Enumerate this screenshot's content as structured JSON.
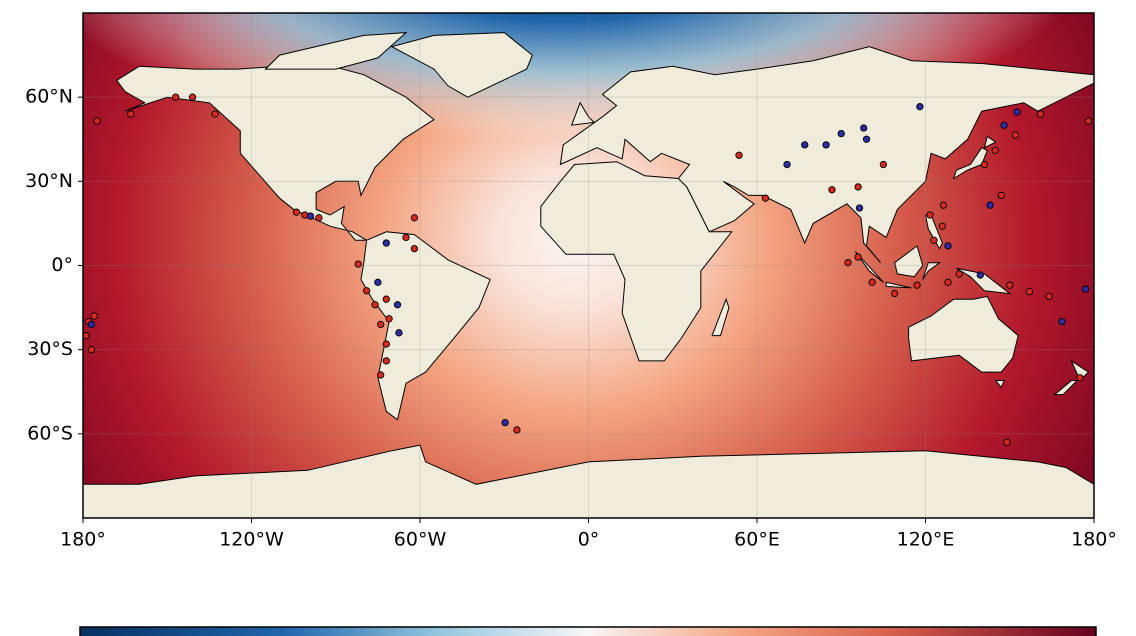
{
  "chart_data": {
    "type": "map",
    "xlim": [
      -180,
      180
    ],
    "ylim": [
      -90,
      90
    ],
    "xticks": [
      {
        "value": -180,
        "label": "180°"
      },
      {
        "value": -120,
        "label": "120°W"
      },
      {
        "value": -60,
        "label": "60°W"
      },
      {
        "value": 0,
        "label": "0°"
      },
      {
        "value": 60,
        "label": "60°E"
      },
      {
        "value": 120,
        "label": "120°E"
      },
      {
        "value": 180,
        "label": "180°"
      }
    ],
    "yticks": [
      {
        "value": 60,
        "label": "60°N"
      },
      {
        "value": 30,
        "label": "30°N"
      },
      {
        "value": 0,
        "label": "0°"
      },
      {
        "value": -30,
        "label": "30°S"
      },
      {
        "value": -60,
        "label": "60°S"
      }
    ],
    "grid": true,
    "series": [
      {
        "color": "#d62a1e",
        "x": [
          -178,
          -176,
          -179,
          -177,
          -175,
          -163,
          -147,
          -141,
          -133,
          -104,
          -101,
          -96,
          -62,
          -65,
          -62,
          -82,
          -79,
          -76,
          -74,
          -72,
          -72,
          -74,
          -72,
          -71,
          -25.5,
          53.6,
          63,
          86.7,
          96,
          105,
          92.4,
          96,
          101,
          109,
          117,
          128,
          132,
          123,
          126,
          126.4,
          141,
          144.8,
          152,
          161,
          178,
          121.6,
          147,
          150,
          157,
          164,
          175,
          149
        ],
        "y": [
          -20,
          -18,
          -25,
          -30,
          51.5,
          54,
          60,
          60,
          54,
          19,
          18,
          17,
          17,
          10,
          6,
          0.5,
          -9,
          -14,
          -21,
          -28,
          -34,
          -39,
          -12,
          -19,
          -58.6,
          39.3,
          24,
          27,
          28,
          36,
          1,
          3,
          -6,
          -10,
          -7,
          -6,
          -3,
          9,
          14,
          21.5,
          36,
          41,
          46.5,
          54,
          51.5,
          18,
          25,
          -7,
          -9.3,
          -11,
          -40,
          -63
        ]
      },
      {
        "color": "#2c2ca8",
        "x": [
          -177,
          -99,
          -72,
          -75,
          -68,
          -67.5,
          -29.7,
          70.7,
          77,
          84.6,
          90,
          98,
          99,
          118,
          96.5,
          128,
          139.5,
          143,
          148,
          152.6,
          177,
          168.6
        ],
        "y": [
          -21,
          17.6,
          8,
          -6,
          -14,
          -24,
          -56,
          36,
          43,
          43,
          47,
          49,
          45,
          56.6,
          20.5,
          7,
          -3.4,
          21.5,
          50,
          54.7,
          -8.4,
          -20
        ]
      }
    ]
  }
}
